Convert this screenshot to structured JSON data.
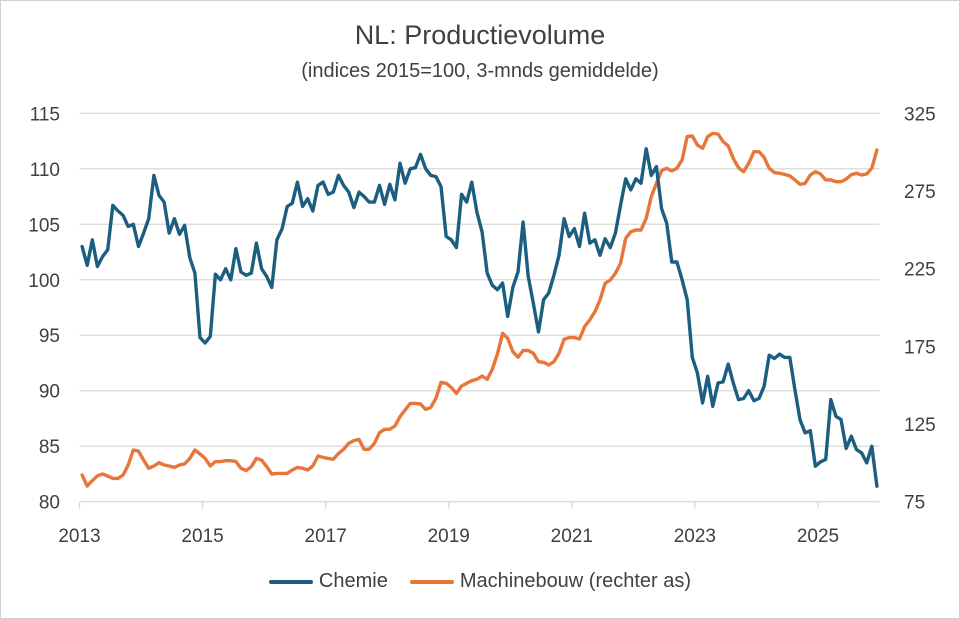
{
  "chart_data": {
    "type": "line",
    "title": "NL: Productievolume",
    "subtitle": "(indices 2015=100, 3-mnds gemiddelde)",
    "x": [
      "2013-01",
      "2013-02",
      "2013-03",
      "2013-04",
      "2013-05",
      "2013-06",
      "2013-07",
      "2013-08",
      "2013-09",
      "2013-10",
      "2013-11",
      "2013-12",
      "2014-01",
      "2014-02",
      "2014-03",
      "2014-04",
      "2014-05",
      "2014-06",
      "2014-07",
      "2014-08",
      "2014-09",
      "2014-10",
      "2014-11",
      "2014-12",
      "2015-01",
      "2015-02",
      "2015-03",
      "2015-04",
      "2015-05",
      "2015-06",
      "2015-07",
      "2015-08",
      "2015-09",
      "2015-10",
      "2015-11",
      "2015-12",
      "2016-01",
      "2016-02",
      "2016-03",
      "2016-04",
      "2016-05",
      "2016-06",
      "2016-07",
      "2016-08",
      "2016-09",
      "2016-10",
      "2016-11",
      "2016-12",
      "2017-01",
      "2017-02",
      "2017-03",
      "2017-04",
      "2017-05",
      "2017-06",
      "2017-07",
      "2017-08",
      "2017-09",
      "2017-10",
      "2017-11",
      "2017-12",
      "2018-01",
      "2018-02",
      "2018-03",
      "2018-04",
      "2018-05",
      "2018-06",
      "2018-07",
      "2018-08",
      "2018-09",
      "2018-10",
      "2018-11",
      "2018-12",
      "2019-01",
      "2019-02",
      "2019-03",
      "2019-04",
      "2019-05",
      "2019-06",
      "2019-07",
      "2019-08",
      "2019-09",
      "2019-10",
      "2019-11",
      "2019-12",
      "2020-01",
      "2020-02",
      "2020-03",
      "2020-04",
      "2020-05",
      "2020-06",
      "2020-07",
      "2020-08",
      "2020-09",
      "2020-10",
      "2020-11",
      "2020-12",
      "2021-01",
      "2021-02",
      "2021-03",
      "2021-04",
      "2021-05",
      "2021-06",
      "2021-07",
      "2021-08",
      "2021-09",
      "2021-10",
      "2021-11",
      "2021-12",
      "2022-01",
      "2022-02",
      "2022-03",
      "2022-04",
      "2022-05",
      "2022-06",
      "2022-07",
      "2022-08",
      "2022-09",
      "2022-10",
      "2022-11",
      "2022-12",
      "2023-01",
      "2023-02",
      "2023-03",
      "2023-04",
      "2023-05",
      "2023-06",
      "2023-07",
      "2023-08",
      "2023-09",
      "2023-10",
      "2023-11",
      "2023-12",
      "2024-01",
      "2024-02",
      "2024-03",
      "2024-04",
      "2024-05",
      "2024-06",
      "2024-07",
      "2024-08",
      "2024-09",
      "2024-10",
      "2024-11",
      "2024-12",
      "2025-01",
      "2025-02",
      "2025-03",
      "2025-04",
      "2025-05",
      "2025-06",
      "2025-07",
      "2025-08",
      "2025-09",
      "2025-10",
      "2025-11",
      "2025-12"
    ],
    "x_ticks": [
      "2013",
      "2015",
      "2017",
      "2019",
      "2021",
      "2023",
      "2025"
    ],
    "y_left": {
      "min": 80,
      "max": 115,
      "ticks": [
        "80",
        "85",
        "90",
        "95",
        "100",
        "105",
        "110",
        "115"
      ]
    },
    "y_right": {
      "min": 75,
      "max": 325,
      "ticks": [
        "75",
        "125",
        "175",
        "225",
        "275",
        "325"
      ]
    },
    "grid": "horizontal",
    "legend_position": "bottom",
    "series": [
      {
        "name": "Chemie",
        "axis": "left",
        "color": "#1b5e80",
        "values": [
          103.0,
          101.3,
          103.6,
          101.2,
          102.1,
          102.7,
          106.7,
          106.2,
          105.8,
          104.8,
          105.0,
          103.0,
          104.2,
          105.5,
          109.4,
          107.6,
          107.0,
          104.2,
          105.5,
          104.1,
          104.9,
          102.0,
          100.6,
          94.8,
          94.3,
          94.9,
          100.5,
          100.0,
          101.0,
          100.0,
          102.8,
          100.7,
          100.4,
          100.6,
          103.3,
          101.0,
          100.3,
          99.3,
          103.6,
          104.6,
          106.6,
          106.9,
          108.8,
          106.6,
          107.3,
          106.2,
          108.5,
          108.8,
          107.7,
          107.9,
          109.4,
          108.5,
          107.9,
          106.5,
          107.9,
          107.5,
          107.0,
          107.0,
          108.5,
          106.8,
          108.6,
          107.2,
          110.5,
          108.7,
          110.0,
          110.1,
          111.3,
          110.0,
          109.4,
          109.3,
          108.4,
          103.9,
          103.6,
          102.9,
          107.7,
          107.0,
          108.8,
          106.1,
          104.3,
          100.6,
          99.5,
          99.1,
          99.7,
          96.7,
          99.3,
          100.7,
          105.2,
          100.3,
          97.9,
          95.3,
          98.2,
          98.8,
          100.4,
          102.2,
          105.5,
          103.9,
          104.6,
          103.0,
          106.0,
          103.3,
          103.6,
          102.2,
          103.7,
          102.9,
          104.2,
          106.7,
          109.1,
          108.1,
          109.1,
          108.7,
          111.8,
          109.4,
          110.2,
          106.4,
          105.1,
          101.6,
          101.6,
          100.0,
          98.2,
          93.0,
          91.6,
          88.9,
          91.3,
          88.6,
          90.7,
          90.8,
          92.4,
          90.7,
          89.2,
          89.3,
          90.0,
          89.1,
          89.3,
          90.4,
          93.2,
          92.9,
          93.3,
          93.0,
          93.0,
          90.1,
          87.4,
          86.2,
          86.4,
          83.2,
          83.6,
          83.8,
          89.2,
          87.7,
          87.4,
          84.8,
          85.9,
          84.7,
          84.4,
          83.5,
          85.0,
          81.4
        ]
      },
      {
        "name": "Machinebouw (rechter as)",
        "axis": "right",
        "color": "#e8763a",
        "values": [
          92.2,
          85.1,
          88.5,
          91.7,
          92.8,
          91.5,
          90.0,
          90.0,
          92.2,
          98.6,
          108.3,
          107.6,
          101.8,
          96.5,
          98.0,
          100.1,
          98.6,
          98.0,
          97.1,
          98.6,
          99.3,
          102.9,
          108.3,
          105.7,
          102.9,
          98.0,
          100.8,
          100.8,
          101.4,
          101.4,
          100.8,
          96.5,
          95.0,
          97.5,
          102.9,
          101.8,
          97.5,
          92.8,
          93.2,
          93.2,
          93.2,
          95.4,
          97.1,
          96.5,
          95.4,
          98.0,
          104.4,
          103.5,
          102.9,
          102.3,
          106.1,
          108.7,
          112.6,
          114.3,
          115.1,
          108.7,
          108.7,
          112.6,
          119.4,
          121.6,
          121.6,
          123.7,
          129.7,
          134.0,
          138.3,
          138.3,
          137.9,
          134.4,
          135.7,
          141.5,
          151.8,
          151.2,
          148.6,
          144.7,
          149.5,
          151.2,
          152.9,
          153.8,
          155.9,
          153.8,
          160.2,
          170.1,
          183.4,
          180.2,
          171.6,
          168.0,
          172.3,
          172.3,
          170.5,
          165.1,
          164.7,
          163.0,
          165.1,
          170.5,
          179.5,
          180.6,
          180.6,
          179.7,
          187.7,
          192.0,
          197.3,
          204.8,
          215.6,
          217.7,
          222.0,
          228.4,
          244.5,
          248.8,
          249.9,
          249.9,
          257.4,
          271.4,
          279.9,
          288.1,
          289.6,
          287.9,
          289.6,
          295.0,
          310.0,
          310.4,
          304.6,
          302.5,
          310.0,
          312.1,
          311.7,
          306.8,
          304.0,
          296.0,
          290.0,
          287.4,
          292.8,
          300.3,
          300.3,
          296.7,
          289.6,
          286.8,
          286.4,
          285.7,
          284.7,
          282.1,
          279.3,
          279.9,
          285.3,
          287.4,
          285.9,
          282.1,
          282.1,
          281.0,
          281.0,
          282.7,
          285.5,
          286.4,
          285.3,
          285.9,
          289.6,
          301.4
        ]
      }
    ]
  }
}
